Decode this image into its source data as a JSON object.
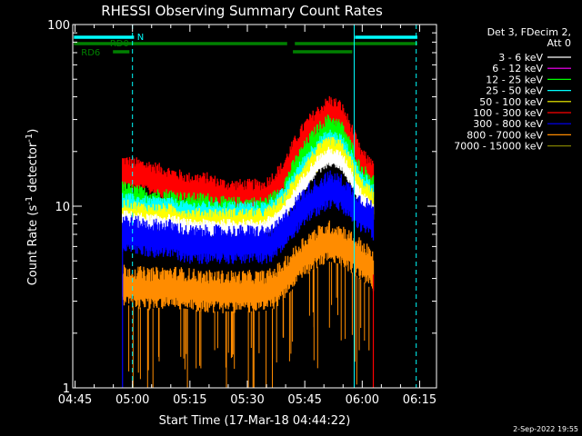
{
  "chart_data": {
    "type": "line",
    "title": "RHESSI Observing Summary Count Rates",
    "xlabel": "Start Time (17-Mar-18 04:44:22)",
    "ylabel_main": "Count Rate (s",
    "ylabel_sup": "-1",
    "ylabel_tail": " detector",
    "ylabel_sup2": "-1",
    "ylabel_close": ")",
    "yscale": "log",
    "ylim": [
      1,
      100
    ],
    "xlim_minutes": [
      0,
      95
    ],
    "x_tick_labels": [
      "04:45",
      "05:00",
      "05:15",
      "05:30",
      "05:45",
      "06:00",
      "06:15"
    ],
    "x_tick_minutes": [
      0.6,
      15.6,
      30.6,
      45.6,
      60.6,
      75.6,
      90.6
    ],
    "y_tick_labels": [
      "1",
      "10",
      "100"
    ],
    "y_tick_values": [
      1,
      10,
      100
    ],
    "legend_header": [
      "Det 3, FDecim 2,",
      "Att 0"
    ],
    "series": [
      {
        "name": "3 - 6 keV",
        "color": "#ffffff"
      },
      {
        "name": "6 - 12 keV",
        "color": "#ff00ff"
      },
      {
        "name": "12 - 25 keV",
        "color": "#00ff00"
      },
      {
        "name": "25 - 50 keV",
        "color": "#00ffff"
      },
      {
        "name": "50 - 100 keV",
        "color": "#ffff00"
      },
      {
        "name": "100 - 300 keV",
        "color": "#ff0000"
      },
      {
        "name": "300 - 800 keV",
        "color": "#0000ff"
      },
      {
        "name": "800 - 7000 keV",
        "color": "#ff8c00"
      },
      {
        "name": "7000 - 15000 keV",
        "color": "#808000"
      }
    ],
    "data_start_minute": 13.0,
    "data_end_minute": 78.5,
    "envelope": {
      "minutes": [
        13,
        20,
        25,
        30,
        35,
        40,
        45,
        50,
        52,
        55,
        58,
        61,
        64,
        67,
        70,
        73,
        75,
        77,
        78.5
      ],
      "red": [
        15,
        14,
        13,
        12,
        12,
        11,
        11,
        11,
        12,
        14,
        19,
        24,
        28,
        32,
        30,
        22,
        17,
        15,
        15
      ],
      "green": [
        11,
        10,
        10,
        9.5,
        9.5,
        9,
        9,
        9,
        9.5,
        11,
        15,
        19,
        23,
        26,
        24,
        18,
        14,
        13,
        12
      ],
      "yellow": [
        9,
        8.5,
        8.5,
        8,
        8,
        8,
        8,
        8,
        8.5,
        9.5,
        12,
        15,
        18,
        20,
        19,
        15,
        12,
        11,
        10
      ],
      "blue": [
        7,
        6.5,
        6.5,
        6,
        6,
        6,
        6,
        6,
        6,
        7,
        8.5,
        10,
        11,
        12,
        11.5,
        10,
        9,
        8.5,
        8
      ],
      "orange": [
        3.6,
        3.4,
        3.5,
        3.4,
        3.3,
        3.3,
        3.3,
        3.3,
        3.4,
        3.8,
        4.5,
        5.3,
        5.8,
        6.2,
        6.0,
        5.4,
        5.0,
        4.6,
        4.2
      ]
    },
    "vertical_lines": [
      {
        "minute": 15.6,
        "style": "dashed",
        "color": "#00ffff"
      },
      {
        "minute": 73.5,
        "style": "solid",
        "color": "#00ffff"
      },
      {
        "minute": 89.7,
        "style": "dashed",
        "color": "#00ffff"
      },
      {
        "minute": 0.0,
        "style": "solid",
        "color": "#00ffff"
      }
    ],
    "flag_bars": [
      {
        "label": "N",
        "color": "#00ffff",
        "segments": [
          [
            0.3,
            16.0
          ],
          [
            73.7,
            90.0
          ]
        ],
        "row": 0
      },
      {
        "label": "RD0",
        "color": "#008000",
        "segments": [
          [
            0.3,
            56.0
          ],
          [
            58.0,
            90.0
          ]
        ],
        "row": 1
      },
      {
        "label": "RD6",
        "color": "#008000",
        "segments": [
          [
            10.5,
            14.8
          ],
          [
            57.5,
            73.0
          ]
        ],
        "row": 2
      }
    ],
    "bottom_right_stamp": "2-Sep-2022 19:55"
  }
}
